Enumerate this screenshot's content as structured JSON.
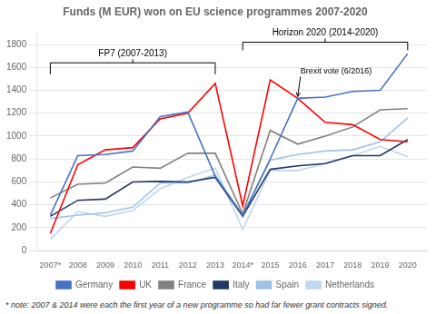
{
  "chart_data": {
    "type": "line",
    "title": "Funds (M EUR) won on EU science programmes 2007-2020",
    "footnote": "* note: 2007 & 2014 were each the first year of a new programme so had far fewer grant contracts signed.",
    "x": [
      2007,
      2008,
      2009,
      2010,
      2011,
      2012,
      2013,
      2014,
      2015,
      2016,
      2017,
      2018,
      2019,
      2020
    ],
    "series": [
      {
        "name": "Germany",
        "color": "#4472C4",
        "values": [
          310,
          830,
          840,
          870,
          1170,
          1210,
          650,
          310,
          800,
          1330,
          1340,
          1390,
          1400,
          1720
        ]
      },
      {
        "name": "UK",
        "color": "#FF0000",
        "values": [
          150,
          750,
          880,
          900,
          1150,
          1200,
          1460,
          390,
          1490,
          1330,
          1120,
          1100,
          970,
          950
        ]
      },
      {
        "name": "France",
        "color": "#808080",
        "values": [
          460,
          580,
          590,
          730,
          720,
          850,
          850,
          320,
          1050,
          930,
          1000,
          1080,
          1230,
          1240
        ]
      },
      {
        "name": "Italy",
        "color": "#1F3864",
        "values": [
          300,
          440,
          450,
          600,
          605,
          600,
          640,
          300,
          710,
          740,
          760,
          830,
          830,
          970
        ]
      },
      {
        "name": "Spain",
        "color": "#9DC3E6",
        "values": [
          280,
          310,
          330,
          380,
          590,
          590,
          660,
          300,
          790,
          840,
          870,
          880,
          950,
          1160
        ]
      },
      {
        "name": "Netherlands",
        "color": "#BDD7EE",
        "values": [
          100,
          340,
          300,
          350,
          540,
          640,
          720,
          185,
          700,
          700,
          760,
          830,
          910,
          820
        ]
      }
    ],
    "xlim": [
      2006.5,
      2020.7
    ],
    "xticks": [
      {
        "value": 2007,
        "label": "2007*"
      },
      2008,
      2009,
      2010,
      2011,
      2012,
      2013,
      {
        "value": 2014,
        "label": "2014*"
      },
      2015,
      2016,
      2017,
      2018,
      2019,
      2020
    ],
    "ylim": [
      0,
      1900
    ],
    "yticks": [
      0,
      200,
      400,
      600,
      800,
      1000,
      1200,
      1400,
      1600,
      1800
    ],
    "grid": true,
    "legend": "bottom",
    "annotations": [
      {
        "type": "bracket",
        "text": "FP7 (2007-2013)",
        "x": [
          2007,
          2013
        ],
        "y": [
          1540,
          1640
        ]
      },
      {
        "type": "bracket",
        "text": "Horizon 2020 (2014-2020)",
        "x": [
          2014,
          2020
        ],
        "y": [
          1750,
          1820
        ]
      },
      {
        "type": "arrow",
        "text": "Brexit vote (6/2016)",
        "x": 2016,
        "y": 1330
      }
    ]
  }
}
